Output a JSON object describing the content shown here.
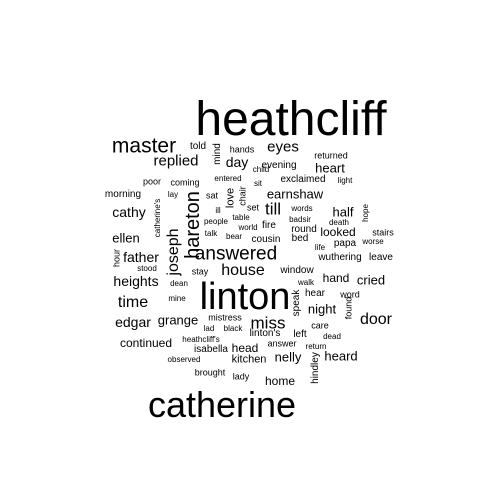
{
  "cloud": {
    "text_color": "#000000",
    "background": "#ffffff",
    "words": [
      {
        "text": "heathcliff",
        "rotated": false
      },
      {
        "text": "linton",
        "rotated": false
      },
      {
        "text": "catherine",
        "rotated": false
      },
      {
        "text": "master",
        "rotated": false
      },
      {
        "text": "hareton",
        "rotated": true
      },
      {
        "text": "answered",
        "rotated": false
      },
      {
        "text": "replied",
        "rotated": false
      },
      {
        "text": "eyes",
        "rotated": false
      },
      {
        "text": "till",
        "rotated": false
      },
      {
        "text": "joseph",
        "rotated": true
      },
      {
        "text": "house",
        "rotated": false
      },
      {
        "text": "miss",
        "rotated": false
      },
      {
        "text": "door",
        "rotated": false
      },
      {
        "text": "time",
        "rotated": false
      },
      {
        "text": "cathy",
        "rotated": false
      },
      {
        "text": "father",
        "rotated": false
      },
      {
        "text": "heights",
        "rotated": false
      },
      {
        "text": "ellen",
        "rotated": false
      },
      {
        "text": "edgar",
        "rotated": false
      },
      {
        "text": "day",
        "rotated": false
      },
      {
        "text": "earnshaw",
        "rotated": false
      },
      {
        "text": "heart",
        "rotated": false
      },
      {
        "text": "night",
        "rotated": false
      },
      {
        "text": "cried",
        "rotated": false
      },
      {
        "text": "half",
        "rotated": false
      },
      {
        "text": "looked",
        "rotated": false
      },
      {
        "text": "hand",
        "rotated": false
      },
      {
        "text": "nelly",
        "rotated": false
      },
      {
        "text": "heard",
        "rotated": false
      },
      {
        "text": "head",
        "rotated": false
      },
      {
        "text": "home",
        "rotated": false
      },
      {
        "text": "grange",
        "rotated": false
      },
      {
        "text": "continued",
        "rotated": false
      },
      {
        "text": "kitchen",
        "rotated": false
      },
      {
        "text": "love",
        "rotated": true
      },
      {
        "text": "told",
        "rotated": false
      },
      {
        "text": "mind",
        "rotated": true
      },
      {
        "text": "hands",
        "rotated": false
      },
      {
        "text": "returned",
        "rotated": false
      },
      {
        "text": "evening",
        "rotated": false
      },
      {
        "text": "exclaimed",
        "rotated": false
      },
      {
        "text": "coming",
        "rotated": false
      },
      {
        "text": "poor",
        "rotated": false
      },
      {
        "text": "entered",
        "rotated": false
      },
      {
        "text": "sit",
        "rotated": false
      },
      {
        "text": "child",
        "rotated": false
      },
      {
        "text": "light",
        "rotated": false
      },
      {
        "text": "morning",
        "rotated": false
      },
      {
        "text": "lay",
        "rotated": false
      },
      {
        "text": "sat",
        "rotated": false
      },
      {
        "text": "chair",
        "rotated": true
      },
      {
        "text": "ill",
        "rotated": false
      },
      {
        "text": "set",
        "rotated": false
      },
      {
        "text": "words",
        "rotated": false
      },
      {
        "text": "hope",
        "rotated": true
      },
      {
        "text": "catherine's",
        "rotated": true
      },
      {
        "text": "people",
        "rotated": false
      },
      {
        "text": "table",
        "rotated": false
      },
      {
        "text": "world",
        "rotated": false
      },
      {
        "text": "fire",
        "rotated": false
      },
      {
        "text": "badsir",
        "rotated": false
      },
      {
        "text": "round",
        "rotated": false
      },
      {
        "text": "death",
        "rotated": false
      },
      {
        "text": "stairs",
        "rotated": false
      },
      {
        "text": "talk",
        "rotated": false
      },
      {
        "text": "bear",
        "rotated": false
      },
      {
        "text": "cousin",
        "rotated": false
      },
      {
        "text": "bed",
        "rotated": false
      },
      {
        "text": "papa",
        "rotated": false
      },
      {
        "text": "life",
        "rotated": false
      },
      {
        "text": "worse",
        "rotated": false
      },
      {
        "text": "leave",
        "rotated": false
      },
      {
        "text": "wuthering",
        "rotated": false
      },
      {
        "text": "hour",
        "rotated": true
      },
      {
        "text": "stood",
        "rotated": false
      },
      {
        "text": "stay",
        "rotated": false
      },
      {
        "text": "window",
        "rotated": false
      },
      {
        "text": "walk",
        "rotated": false
      },
      {
        "text": "dean",
        "rotated": false
      },
      {
        "text": "hear",
        "rotated": false
      },
      {
        "text": "word",
        "rotated": false
      },
      {
        "text": "mine",
        "rotated": false
      },
      {
        "text": "speak",
        "rotated": true
      },
      {
        "text": "found",
        "rotated": true
      },
      {
        "text": "mistress",
        "rotated": false
      },
      {
        "text": "lad",
        "rotated": false
      },
      {
        "text": "black",
        "rotated": false
      },
      {
        "text": "linton's",
        "rotated": false
      },
      {
        "text": "left",
        "rotated": false
      },
      {
        "text": "care",
        "rotated": false
      },
      {
        "text": "dead",
        "rotated": false
      },
      {
        "text": "heathcliff's",
        "rotated": false
      },
      {
        "text": "answer",
        "rotated": false
      },
      {
        "text": "return",
        "rotated": false
      },
      {
        "text": "isabella",
        "rotated": false
      },
      {
        "text": "hindley",
        "rotated": true
      },
      {
        "text": "observed",
        "rotated": false
      },
      {
        "text": "brought",
        "rotated": false
      },
      {
        "text": "lady",
        "rotated": false
      }
    ]
  }
}
